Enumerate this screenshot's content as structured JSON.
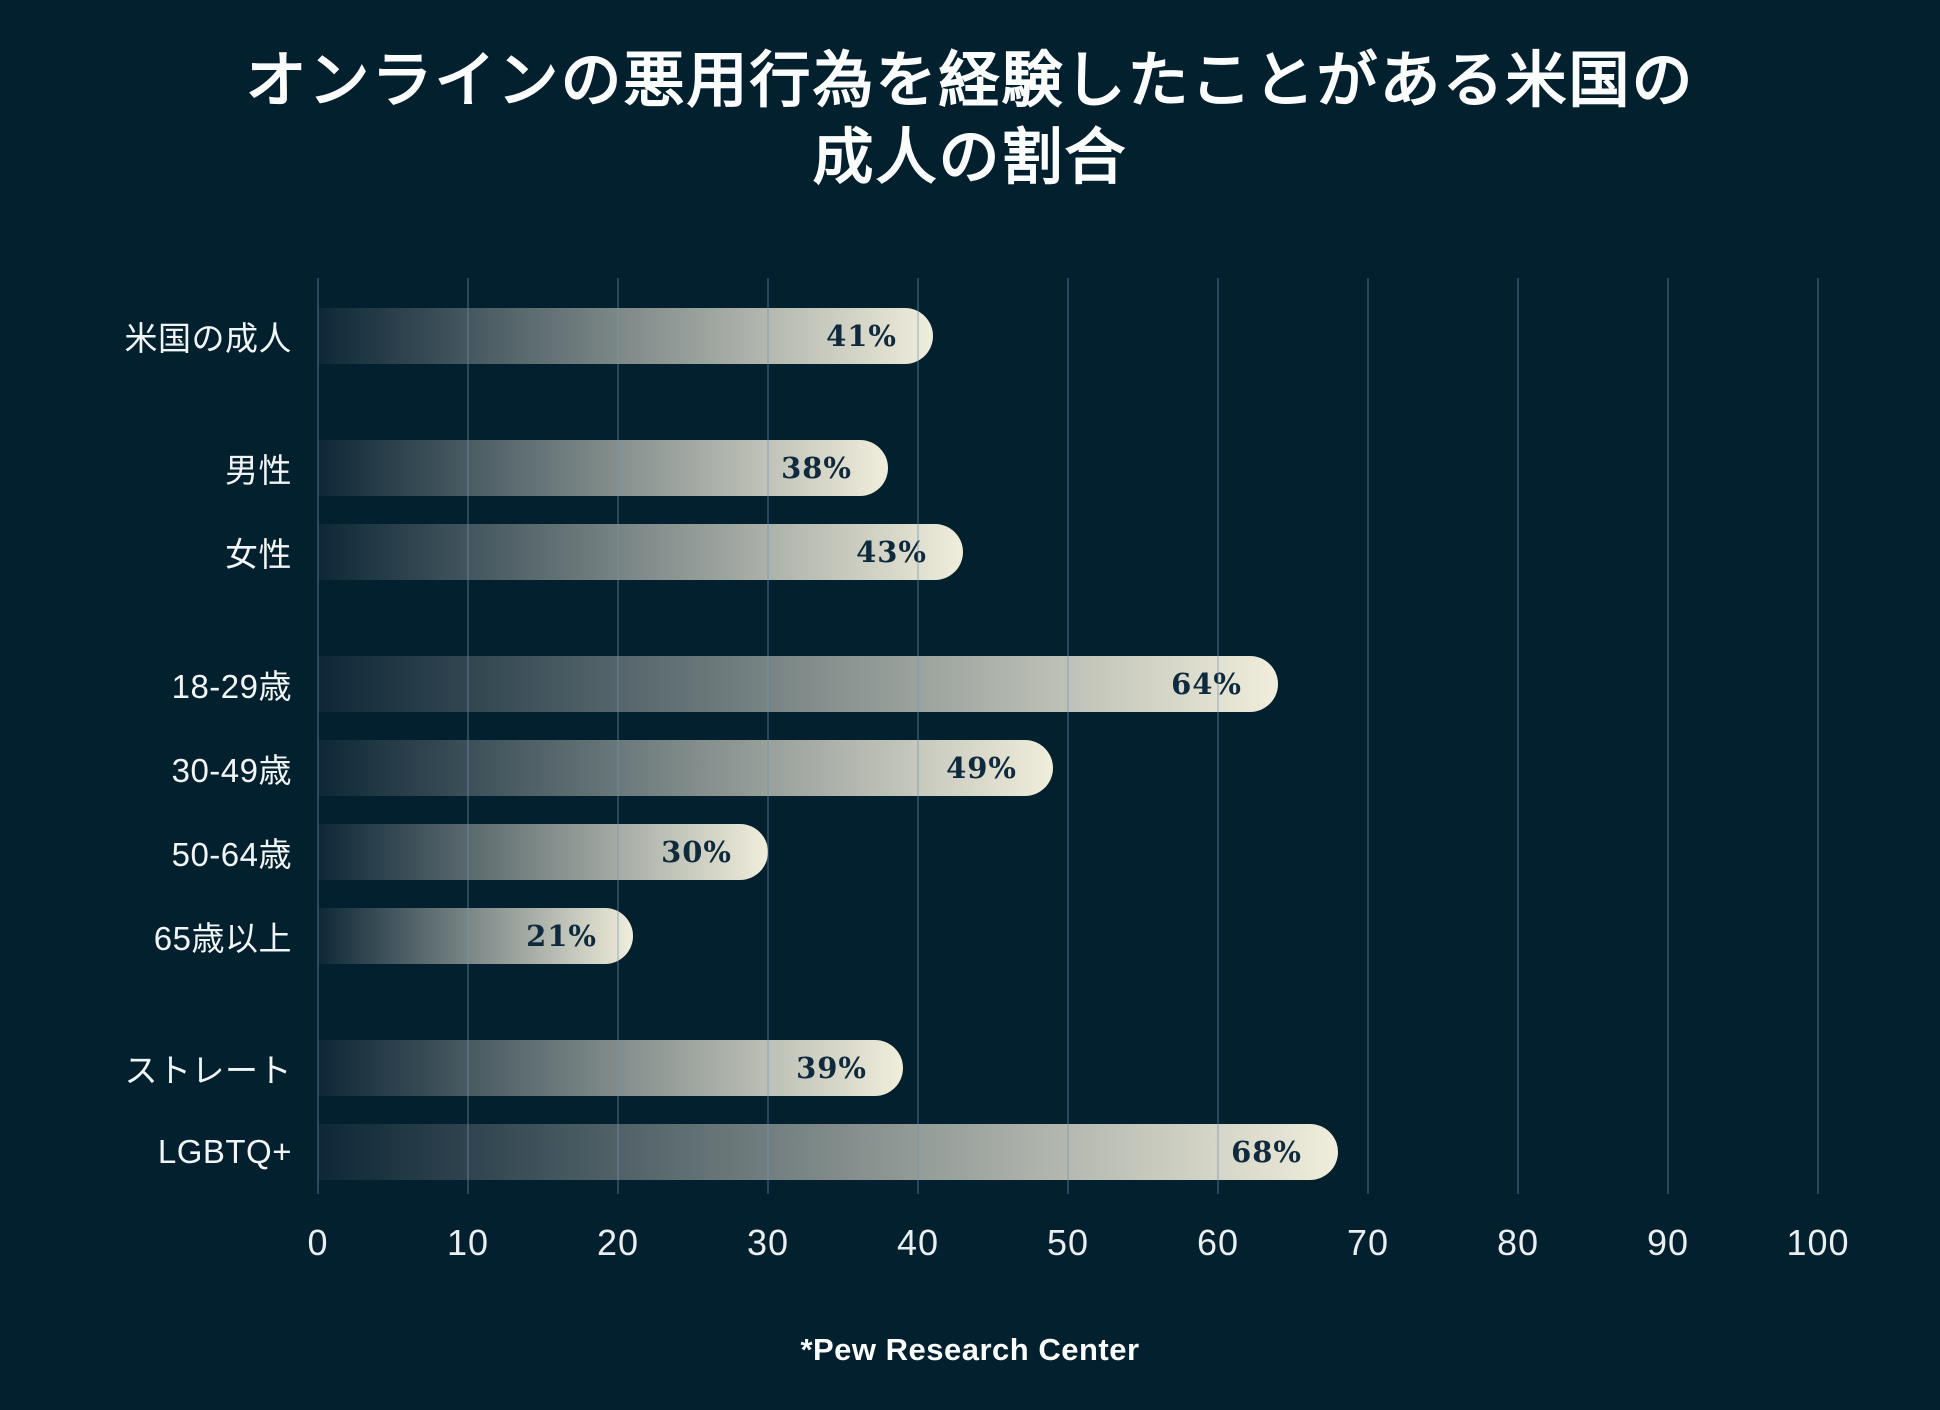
{
  "title_lines": [
    "オンラインの悪用行為を経験したことがある米国の",
    "成人の割合"
  ],
  "source_note": "*Pew Research Center",
  "colors": {
    "background": "#03202f",
    "bar_gradient_start": "#0e2737",
    "bar_gradient_end": "#f0eddb",
    "value_text": "#0f2a3c",
    "label_text": "#f1f5f6",
    "gridline": "rgba(110,150,180,0.35)"
  },
  "chart_data": {
    "type": "bar",
    "orientation": "horizontal",
    "title": "オンラインの悪用行為を経験したことがある米国の成人の割合",
    "source": "*Pew Research Center",
    "xlabel": "",
    "ylabel": "",
    "xlim": [
      0,
      100
    ],
    "x_ticks": [
      0,
      10,
      20,
      30,
      40,
      50,
      60,
      70,
      80,
      90,
      100
    ],
    "grid": true,
    "legend": "none",
    "groups": [
      {
        "name": "all",
        "rows": [
          {
            "label": "米国の成人",
            "value": 41,
            "value_label": "41%"
          }
        ]
      },
      {
        "name": "gender",
        "rows": [
          {
            "label": "男性",
            "value": 38,
            "value_label": "38%"
          },
          {
            "label": "女性",
            "value": 43,
            "value_label": "43%"
          }
        ]
      },
      {
        "name": "age",
        "rows": [
          {
            "label": "18-29歳",
            "value": 64,
            "value_label": "64%"
          },
          {
            "label": "30-49歳",
            "value": 49,
            "value_label": "49%"
          },
          {
            "label": "50-64歳",
            "value": 30,
            "value_label": "30%"
          },
          {
            "label": "65歳以上",
            "value": 21,
            "value_label": "21%"
          }
        ]
      },
      {
        "name": "orientation",
        "rows": [
          {
            "label": "ストレート",
            "value": 39,
            "value_label": "39%"
          },
          {
            "label": "LGBTQ+",
            "value": 68,
            "value_label": "68%"
          }
        ]
      }
    ]
  }
}
